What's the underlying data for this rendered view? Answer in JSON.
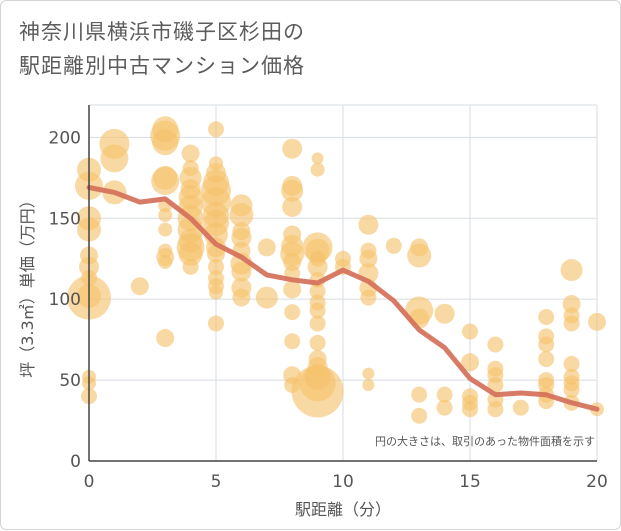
{
  "chart_data": {
    "type": "scatter",
    "title": "神奈川県横浜市磯子区杉田の\n駅距離別中古マンション価格",
    "xlabel": "駅距離（分）",
    "ylabel": "坪（3.3㎡）単価（万円）",
    "xlim": [
      0,
      20
    ],
    "ylim": [
      0,
      220
    ],
    "x_ticks": [
      0,
      5,
      10,
      15,
      20
    ],
    "y_ticks": [
      0,
      50,
      100,
      150,
      200
    ],
    "grid": true,
    "note": "円の大きさは、取引のあった物件面積を示す",
    "colors": {
      "bubble": "#f5c26b",
      "line": "#d4705a",
      "grid": "#d6dde3",
      "plot_bg": "#ffffff"
    },
    "line_series": {
      "x": [
        0,
        1,
        2,
        3,
        4,
        5,
        6,
        7,
        8,
        9,
        10,
        11,
        12,
        13,
        14,
        15,
        16,
        17,
        18,
        19,
        20
      ],
      "y": [
        169,
        166,
        160,
        162,
        150,
        134,
        126,
        115,
        112,
        110,
        118,
        111,
        99,
        81,
        70,
        51,
        41,
        42,
        41,
        36,
        32
      ]
    },
    "bubbles": [
      {
        "x": 0,
        "y": 101,
        "r": 22
      },
      {
        "x": 0,
        "y": 102,
        "r": 12
      },
      {
        "x": 0,
        "y": 52,
        "r": 7
      },
      {
        "x": 0,
        "y": 48,
        "r": 7
      },
      {
        "x": 0,
        "y": 40,
        "r": 8
      },
      {
        "x": 0,
        "y": 180,
        "r": 12
      },
      {
        "x": 0,
        "y": 170,
        "r": 14
      },
      {
        "x": 0,
        "y": 150,
        "r": 12
      },
      {
        "x": 0,
        "y": 143,
        "r": 12
      },
      {
        "x": 0,
        "y": 127,
        "r": 9
      },
      {
        "x": 0,
        "y": 120,
        "r": 10
      },
      {
        "x": 0,
        "y": 113,
        "r": 8
      },
      {
        "x": 1,
        "y": 196,
        "r": 15
      },
      {
        "x": 1,
        "y": 187,
        "r": 14
      },
      {
        "x": 1,
        "y": 166,
        "r": 12
      },
      {
        "x": 2,
        "y": 108,
        "r": 9
      },
      {
        "x": 3,
        "y": 205,
        "r": 13
      },
      {
        "x": 3,
        "y": 201,
        "r": 15
      },
      {
        "x": 3,
        "y": 197,
        "r": 13
      },
      {
        "x": 3,
        "y": 175,
        "r": 12
      },
      {
        "x": 3,
        "y": 173,
        "r": 14
      },
      {
        "x": 3,
        "y": 158,
        "r": 7
      },
      {
        "x": 3,
        "y": 152,
        "r": 7
      },
      {
        "x": 3,
        "y": 143,
        "r": 7
      },
      {
        "x": 3,
        "y": 130,
        "r": 7
      },
      {
        "x": 3,
        "y": 126,
        "r": 9
      },
      {
        "x": 3,
        "y": 123,
        "r": 7
      },
      {
        "x": 3,
        "y": 76,
        "r": 9
      },
      {
        "x": 4,
        "y": 190,
        "r": 9
      },
      {
        "x": 4,
        "y": 181,
        "r": 8
      },
      {
        "x": 4,
        "y": 175,
        "r": 11
      },
      {
        "x": 4,
        "y": 168,
        "r": 10
      },
      {
        "x": 4,
        "y": 163,
        "r": 12
      },
      {
        "x": 4,
        "y": 157,
        "r": 12
      },
      {
        "x": 4,
        "y": 150,
        "r": 13
      },
      {
        "x": 4,
        "y": 143,
        "r": 13
      },
      {
        "x": 4,
        "y": 136,
        "r": 12
      },
      {
        "x": 4,
        "y": 132,
        "r": 14
      },
      {
        "x": 4,
        "y": 128,
        "r": 12
      },
      {
        "x": 4,
        "y": 120,
        "r": 8
      },
      {
        "x": 5,
        "y": 205,
        "r": 8
      },
      {
        "x": 5,
        "y": 184,
        "r": 7
      },
      {
        "x": 5,
        "y": 178,
        "r": 10
      },
      {
        "x": 5,
        "y": 172,
        "r": 13
      },
      {
        "x": 5,
        "y": 167,
        "r": 15
      },
      {
        "x": 5,
        "y": 160,
        "r": 15
      },
      {
        "x": 5,
        "y": 152,
        "r": 13
      },
      {
        "x": 5,
        "y": 147,
        "r": 13
      },
      {
        "x": 5,
        "y": 140,
        "r": 12
      },
      {
        "x": 5,
        "y": 132,
        "r": 10
      },
      {
        "x": 5,
        "y": 128,
        "r": 9
      },
      {
        "x": 5,
        "y": 120,
        "r": 8
      },
      {
        "x": 5,
        "y": 113,
        "r": 8
      },
      {
        "x": 5,
        "y": 108,
        "r": 8
      },
      {
        "x": 5,
        "y": 104,
        "r": 7
      },
      {
        "x": 5,
        "y": 85,
        "r": 8
      },
      {
        "x": 6,
        "y": 158,
        "r": 11
      },
      {
        "x": 6,
        "y": 152,
        "r": 12
      },
      {
        "x": 6,
        "y": 142,
        "r": 9
      },
      {
        "x": 6,
        "y": 138,
        "r": 10
      },
      {
        "x": 6,
        "y": 130,
        "r": 9
      },
      {
        "x": 6,
        "y": 122,
        "r": 11
      },
      {
        "x": 6,
        "y": 117,
        "r": 10
      },
      {
        "x": 6,
        "y": 107,
        "r": 10
      },
      {
        "x": 6,
        "y": 101,
        "r": 9
      },
      {
        "x": 7,
        "y": 132,
        "r": 9
      },
      {
        "x": 7,
        "y": 101,
        "r": 11
      },
      {
        "x": 8,
        "y": 193,
        "r": 10
      },
      {
        "x": 8,
        "y": 170,
        "r": 10
      },
      {
        "x": 8,
        "y": 167,
        "r": 11
      },
      {
        "x": 8,
        "y": 157,
        "r": 10
      },
      {
        "x": 8,
        "y": 140,
        "r": 9
      },
      {
        "x": 8,
        "y": 133,
        "r": 11
      },
      {
        "x": 8,
        "y": 128,
        "r": 12
      },
      {
        "x": 8,
        "y": 123,
        "r": 9
      },
      {
        "x": 8,
        "y": 116,
        "r": 8
      },
      {
        "x": 8,
        "y": 106,
        "r": 9
      },
      {
        "x": 8,
        "y": 92,
        "r": 8
      },
      {
        "x": 8,
        "y": 74,
        "r": 8
      },
      {
        "x": 8,
        "y": 53,
        "r": 9
      },
      {
        "x": 8,
        "y": 47,
        "r": 8
      },
      {
        "x": 9,
        "y": 187,
        "r": 6
      },
      {
        "x": 9,
        "y": 180,
        "r": 7
      },
      {
        "x": 9,
        "y": 132,
        "r": 15
      },
      {
        "x": 9,
        "y": 130,
        "r": 12
      },
      {
        "x": 9,
        "y": 125,
        "r": 8
      },
      {
        "x": 9,
        "y": 120,
        "r": 10
      },
      {
        "x": 9,
        "y": 112,
        "r": 8
      },
      {
        "x": 9,
        "y": 105,
        "r": 8
      },
      {
        "x": 9,
        "y": 98,
        "r": 8
      },
      {
        "x": 9,
        "y": 93,
        "r": 8
      },
      {
        "x": 9,
        "y": 85,
        "r": 8
      },
      {
        "x": 9,
        "y": 73,
        "r": 8
      },
      {
        "x": 9,
        "y": 63,
        "r": 9
      },
      {
        "x": 9,
        "y": 58,
        "r": 10
      },
      {
        "x": 9,
        "y": 52,
        "r": 13
      },
      {
        "x": 9,
        "y": 48,
        "r": 18
      },
      {
        "x": 9,
        "y": 43,
        "r": 26
      },
      {
        "x": 10,
        "y": 125,
        "r": 8
      },
      {
        "x": 10,
        "y": 120,
        "r": 8
      },
      {
        "x": 11,
        "y": 146,
        "r": 10
      },
      {
        "x": 11,
        "y": 130,
        "r": 8
      },
      {
        "x": 11,
        "y": 125,
        "r": 9
      },
      {
        "x": 11,
        "y": 116,
        "r": 10
      },
      {
        "x": 11,
        "y": 107,
        "r": 9
      },
      {
        "x": 11,
        "y": 101,
        "r": 8
      },
      {
        "x": 11,
        "y": 54,
        "r": 6
      },
      {
        "x": 11,
        "y": 47,
        "r": 6
      },
      {
        "x": 12,
        "y": 133,
        "r": 8
      },
      {
        "x": 13,
        "y": 132,
        "r": 9
      },
      {
        "x": 13,
        "y": 127,
        "r": 12
      },
      {
        "x": 13,
        "y": 93,
        "r": 14
      },
      {
        "x": 13,
        "y": 88,
        "r": 10
      },
      {
        "x": 13,
        "y": 41,
        "r": 8
      },
      {
        "x": 13,
        "y": 28,
        "r": 8
      },
      {
        "x": 14,
        "y": 91,
        "r": 10
      },
      {
        "x": 14,
        "y": 41,
        "r": 8
      },
      {
        "x": 14,
        "y": 33,
        "r": 8
      },
      {
        "x": 15,
        "y": 80,
        "r": 8
      },
      {
        "x": 15,
        "y": 61,
        "r": 9
      },
      {
        "x": 15,
        "y": 40,
        "r": 8
      },
      {
        "x": 15,
        "y": 36,
        "r": 8
      },
      {
        "x": 15,
        "y": 32,
        "r": 8
      },
      {
        "x": 16,
        "y": 72,
        "r": 8
      },
      {
        "x": 16,
        "y": 57,
        "r": 8
      },
      {
        "x": 16,
        "y": 53,
        "r": 8
      },
      {
        "x": 16,
        "y": 47,
        "r": 8
      },
      {
        "x": 16,
        "y": 38,
        "r": 8
      },
      {
        "x": 16,
        "y": 32,
        "r": 8
      },
      {
        "x": 17,
        "y": 33,
        "r": 8
      },
      {
        "x": 18,
        "y": 89,
        "r": 8
      },
      {
        "x": 18,
        "y": 77,
        "r": 8
      },
      {
        "x": 18,
        "y": 72,
        "r": 8
      },
      {
        "x": 18,
        "y": 63,
        "r": 8
      },
      {
        "x": 18,
        "y": 50,
        "r": 8
      },
      {
        "x": 18,
        "y": 47,
        "r": 8
      },
      {
        "x": 18,
        "y": 41,
        "r": 8
      },
      {
        "x": 18,
        "y": 37,
        "r": 8
      },
      {
        "x": 19,
        "y": 118,
        "r": 11
      },
      {
        "x": 19,
        "y": 97,
        "r": 9
      },
      {
        "x": 19,
        "y": 90,
        "r": 8
      },
      {
        "x": 19,
        "y": 85,
        "r": 8
      },
      {
        "x": 19,
        "y": 60,
        "r": 8
      },
      {
        "x": 19,
        "y": 52,
        "r": 8
      },
      {
        "x": 19,
        "y": 48,
        "r": 8
      },
      {
        "x": 19,
        "y": 44,
        "r": 8
      },
      {
        "x": 19,
        "y": 36,
        "r": 8
      },
      {
        "x": 20,
        "y": 86,
        "r": 9
      },
      {
        "x": 20,
        "y": 32,
        "r": 7
      }
    ]
  }
}
